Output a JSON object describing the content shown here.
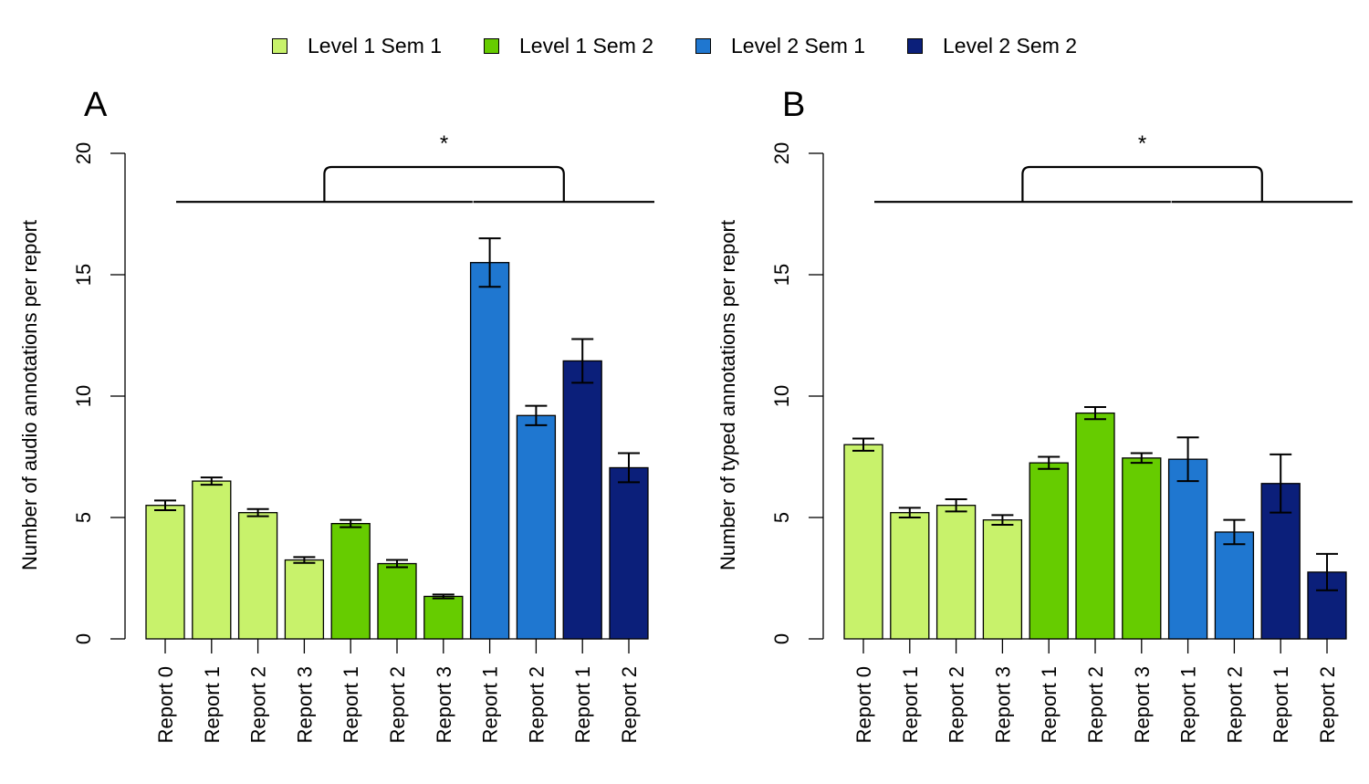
{
  "legend": [
    {
      "label": "Level 1 Sem 1",
      "color": "#c8f26b"
    },
    {
      "label": "Level 1 Sem 2",
      "color": "#66cc00"
    },
    {
      "label": "Level 2 Sem 1",
      "color": "#1f77d0"
    },
    {
      "label": "Level 2 Sem 2",
      "color": "#0b1f7a"
    }
  ],
  "chart_data": [
    {
      "type": "bar",
      "panel_label": "A",
      "ylabel": "Number of audio annotations per report",
      "ylim": [
        0,
        20
      ],
      "yticks": [
        "0",
        "5",
        "10",
        "15",
        "20"
      ],
      "significance_label": "*",
      "categories": [
        "Report 0",
        "Report 1",
        "Report 2",
        "Report 3",
        "Report 1",
        "Report 2",
        "Report 3",
        "Report 1",
        "Report 2",
        "Report 1",
        "Report 2"
      ],
      "groups": [
        0,
        0,
        0,
        0,
        1,
        1,
        1,
        2,
        2,
        3,
        3
      ],
      "values": [
        5.5,
        6.5,
        5.2,
        3.25,
        4.75,
        3.1,
        1.75,
        15.5,
        9.2,
        11.45,
        7.05
      ],
      "error": [
        0.2,
        0.15,
        0.15,
        0.12,
        0.15,
        0.15,
        0.08,
        1.0,
        0.4,
        0.9,
        0.6
      ]
    },
    {
      "type": "bar",
      "panel_label": "B",
      "ylabel": "Number of typed annotations per report",
      "ylim": [
        0,
        20
      ],
      "yticks": [
        "0",
        "5",
        "10",
        "15",
        "20"
      ],
      "significance_label": "*",
      "categories": [
        "Report 0",
        "Report 1",
        "Report 2",
        "Report 3",
        "Report 1",
        "Report 2",
        "Report 3",
        "Report 1",
        "Report 2",
        "Report 1",
        "Report 2"
      ],
      "groups": [
        0,
        0,
        0,
        0,
        1,
        1,
        1,
        2,
        2,
        3,
        3
      ],
      "values": [
        8.0,
        5.2,
        5.5,
        4.9,
        7.25,
        9.3,
        7.45,
        7.4,
        4.4,
        6.4,
        2.75
      ],
      "error": [
        0.25,
        0.2,
        0.25,
        0.2,
        0.25,
        0.25,
        0.2,
        0.9,
        0.5,
        1.2,
        0.75
      ]
    }
  ]
}
